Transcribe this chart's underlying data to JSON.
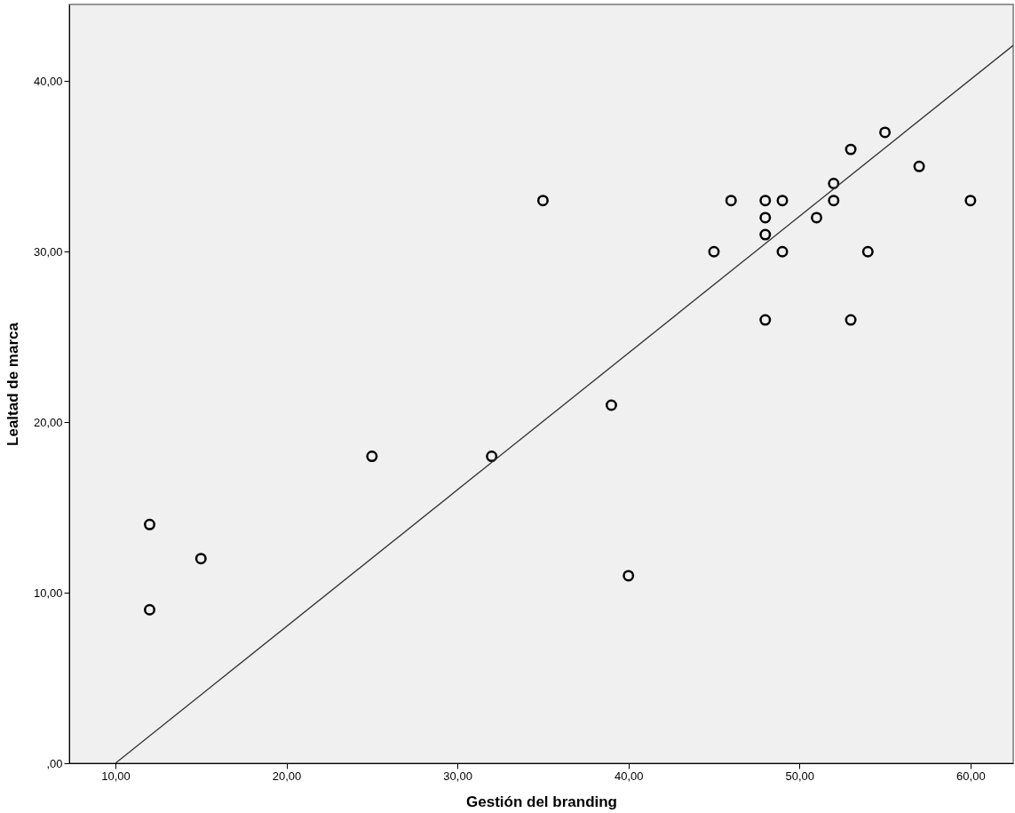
{
  "chart_data": {
    "type": "scatter",
    "xlabel": "Gestión del branding",
    "ylabel": "Lealtad de marca",
    "x": [
      12,
      12,
      15,
      25,
      32,
      35,
      39,
      40,
      45,
      46,
      48,
      48,
      48,
      48,
      49,
      49,
      51,
      52,
      52,
      53,
      53,
      54,
      55,
      57,
      60
    ],
    "series": [
      {
        "type": "scatter",
        "color": "#000000",
        "marker": "circle",
        "values": [
          14,
          9,
          12,
          18,
          18,
          33,
          21,
          11,
          30,
          33,
          33,
          32,
          31,
          26,
          33,
          30,
          32,
          34,
          33,
          36,
          26,
          30,
          37,
          35,
          33
        ]
      },
      {
        "type": "line",
        "color": "#333333",
        "x": [
          10,
          62.5
        ],
        "values": [
          0,
          42.1
        ],
        "line_style": "solid"
      }
    ],
    "xlim": [
      7.3,
      62.5
    ],
    "ylim": [
      0,
      44.5
    ],
    "xticks": [
      {
        "value": 10,
        "label": "10,00"
      },
      {
        "value": 20,
        "label": "20,00"
      },
      {
        "value": 30,
        "label": "30,00"
      },
      {
        "value": 40,
        "label": "40,00"
      },
      {
        "value": 50,
        "label": "50,00"
      },
      {
        "value": 60,
        "label": "60,00"
      }
    ],
    "yticks": [
      {
        "value": 0,
        "label": ",00"
      },
      {
        "value": 10,
        "label": "10,00"
      },
      {
        "value": 20,
        "label": "20,00"
      },
      {
        "value": 30,
        "label": "30,00"
      },
      {
        "value": 40,
        "label": "40,00"
      }
    ],
    "grid": false,
    "legend": false
  }
}
